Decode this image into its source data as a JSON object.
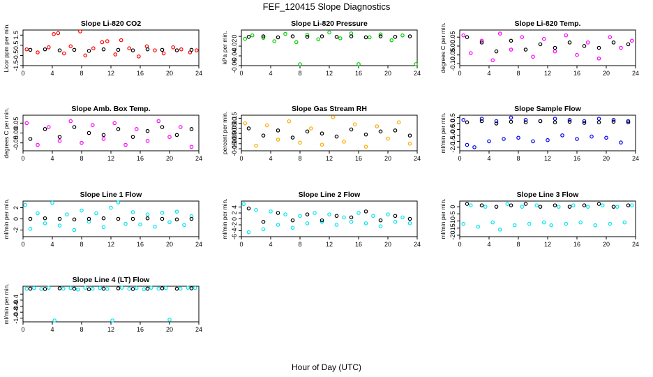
{
  "figure": {
    "title": "FEF_120415  Slope Diagnostics",
    "xlabel": "Hour of Day (UTC)"
  },
  "chart_data": [
    {
      "type": "scatter",
      "title": "Slope Li-820 CO2",
      "ylabel": "Licor ppm per min.",
      "color": "#ff0000",
      "xlim": [
        0,
        24
      ],
      "xticks": [
        0,
        4,
        8,
        12,
        16,
        20,
        24
      ],
      "ylim": [
        -1.5,
        2.0
      ],
      "yticks": [
        -1.5,
        -0.5,
        0.5,
        1.5
      ],
      "ytick_labels": [
        "-1.5",
        "-0.5",
        "0.5",
        "1.5"
      ],
      "series": [
        {
          "role": "main",
          "x": [
            0.5,
            2.0,
            3.5,
            4.2,
            4.8,
            5.6,
            6.5,
            7.8,
            8.5,
            9.6,
            10.8,
            11.5,
            12.6,
            13.4,
            14.5,
            15.8,
            16.9,
            18.0,
            19.2,
            20.5,
            21.6,
            22.8,
            23.7
          ],
          "y": [
            0.1,
            -0.2,
            0.3,
            1.6,
            1.7,
            -0.3,
            0.4,
            1.9,
            -0.5,
            0.2,
            0.8,
            0.9,
            -0.4,
            1.0,
            0.2,
            -0.6,
            0.4,
            0.0,
            -0.3,
            0.3,
            0.1,
            -0.2,
            0.0
          ]
        },
        {
          "role": "reference",
          "x": [
            1,
            3,
            5,
            7,
            9,
            11,
            13,
            15,
            17,
            19,
            21,
            23
          ],
          "y": [
            0.05,
            0.1,
            0.0,
            0.05,
            -0.05,
            0.1,
            0.05,
            0.0,
            0.1,
            0.05,
            0.0,
            0.05
          ]
        }
      ]
    },
    {
      "type": "scatter",
      "title": "Slope Li-820 Pressure",
      "ylabel": "kPa per min.",
      "color": "#00cc00",
      "xlim": [
        0,
        24
      ],
      "xticks": [
        0,
        4,
        8,
        12,
        16,
        20,
        24
      ],
      "ylim": [
        -0.06,
        0.013
      ],
      "yticks": [
        -0.06,
        -0.04,
        -0.02,
        0.0
      ],
      "ytick_labels": [
        "-0.06",
        "-0.04",
        "-0.02",
        "0"
      ],
      "series": [
        {
          "role": "main",
          "x": [
            0.5,
            1.5,
            3.0,
            4.5,
            6.0,
            7.5,
            8.0,
            9.0,
            10.5,
            12.0,
            13.5,
            15.0,
            16.0,
            17.5,
            19.0,
            20.5,
            22.0,
            23.9
          ],
          "y": [
            -0.005,
            0.002,
            -0.003,
            -0.01,
            0.005,
            -0.012,
            -0.06,
            0.003,
            -0.006,
            0.008,
            -0.004,
            0.006,
            -0.057,
            -0.002,
            0.004,
            -0.008,
            0.002,
            -0.062
          ]
        },
        {
          "role": "reference",
          "x": [
            1,
            3,
            5,
            7,
            9,
            11,
            13,
            15,
            17,
            19,
            21,
            23
          ],
          "y": [
            -0.001,
            0.0,
            -0.002,
            0.0,
            -0.001,
            0.0,
            -0.001,
            0.0,
            -0.002,
            0.0,
            -0.001,
            0.0
          ]
        }
      ]
    },
    {
      "type": "scatter",
      "title": "Slope Li-820 Temp.",
      "ylabel": "degrees C per min.",
      "color": "#ff00ff",
      "xlim": [
        0,
        24
      ],
      "xticks": [
        0,
        4,
        8,
        12,
        16,
        20,
        24
      ],
      "ylim": [
        -0.11,
        0.09
      ],
      "yticks": [
        -0.1,
        -0.05,
        0.0,
        0.05
      ],
      "ytick_labels": [
        "-0.10",
        "-0.05",
        "0.00",
        "0.05"
      ],
      "series": [
        {
          "role": "main",
          "x": [
            0.5,
            1.5,
            3.0,
            4.5,
            5.5,
            7.0,
            8.5,
            10.0,
            11.5,
            13.0,
            14.5,
            16.0,
            17.5,
            19.0,
            20.5,
            22.0,
            23.5
          ],
          "y": [
            0.06,
            -0.04,
            0.03,
            -0.08,
            0.07,
            -0.02,
            0.05,
            -0.06,
            0.04,
            -0.03,
            0.06,
            -0.05,
            0.02,
            -0.07,
            0.05,
            -0.01,
            0.03
          ]
        },
        {
          "role": "reference",
          "x": [
            1,
            3,
            5,
            7,
            9,
            11,
            13,
            15,
            17,
            19,
            21,
            23
          ],
          "y": [
            0.05,
            0.02,
            -0.03,
            0.03,
            -0.02,
            0.01,
            -0.01,
            0.02,
            0.0,
            -0.01,
            0.02,
            0.01
          ]
        }
      ]
    },
    {
      "type": "scatter",
      "title": "Slope Amb. Box Temp.",
      "ylabel": "degrees C per min.",
      "color": "#ff00ff",
      "xlim": [
        0,
        24
      ],
      "xticks": [
        0,
        4,
        8,
        12,
        16,
        20,
        24
      ],
      "ylim": [
        -0.09,
        0.09
      ],
      "yticks": [
        -0.05,
        0.0,
        0.05
      ],
      "ytick_labels": [
        "-0.05",
        "0.00",
        "0.05"
      ],
      "series": [
        {
          "role": "main",
          "x": [
            0.5,
            2.0,
            3.5,
            5.0,
            6.5,
            8.0,
            9.5,
            11.0,
            12.5,
            14.0,
            15.5,
            17.0,
            18.5,
            20.0,
            21.5,
            23.0
          ],
          "y": [
            0.05,
            -0.06,
            0.03,
            -0.04,
            0.06,
            -0.05,
            0.04,
            -0.03,
            0.05,
            -0.06,
            0.02,
            -0.04,
            0.06,
            -0.02,
            0.03,
            -0.07
          ]
        },
        {
          "role": "reference",
          "x": [
            1,
            3,
            5,
            7,
            9,
            11,
            13,
            15,
            17,
            19,
            21,
            23
          ],
          "y": [
            -0.03,
            0.02,
            -0.02,
            0.03,
            0.0,
            -0.01,
            0.02,
            -0.02,
            0.01,
            0.03,
            -0.01,
            0.02
          ]
        }
      ]
    },
    {
      "type": "scatter",
      "title": "Slope Gas Stream RH",
      "ylabel": "percent per min.",
      "color": "#ffaa00",
      "xlim": [
        0,
        24
      ],
      "xticks": [
        0,
        4,
        8,
        12,
        16,
        20,
        24
      ],
      "ylim": [
        -0.17,
        0.18
      ],
      "yticks": [
        -0.15,
        -0.1,
        -0.05,
        0.0,
        0.05,
        0.1,
        0.15
      ],
      "ytick_labels": [
        "-0.15",
        "-0.10",
        "-0.05",
        "0.00",
        "0.05",
        "0.10",
        "0.15"
      ],
      "series": [
        {
          "role": "main",
          "x": [
            0.5,
            2.0,
            3.5,
            5.0,
            6.5,
            8.0,
            9.5,
            11.0,
            12.5,
            14.0,
            15.5,
            17.0,
            18.5,
            20.0,
            21.5,
            23.0
          ],
          "y": [
            0.1,
            -0.12,
            0.08,
            -0.06,
            0.12,
            -0.09,
            0.05,
            -0.11,
            0.16,
            -0.08,
            0.09,
            -0.13,
            0.07,
            -0.05,
            0.11,
            -0.1
          ]
        },
        {
          "role": "reference",
          "x": [
            1,
            3,
            5,
            7,
            9,
            11,
            13,
            15,
            17,
            19,
            21,
            23
          ],
          "y": [
            0.05,
            -0.02,
            0.03,
            -0.04,
            0.02,
            0.0,
            -0.03,
            0.04,
            -0.01,
            0.02,
            0.03,
            -0.02
          ]
        }
      ]
    },
    {
      "type": "scatter",
      "title": "Slope Sample Flow",
      "ylabel": "ml/min per min.",
      "color": "#0000ee",
      "xlim": [
        0,
        24
      ],
      "xticks": [
        0,
        4,
        8,
        12,
        16,
        20,
        24
      ],
      "ylim": [
        -2.3,
        0.7
      ],
      "yticks": [
        -2.0,
        -1.5,
        -1.0,
        -0.5,
        0.0,
        0.5
      ],
      "ytick_labels": [
        "-2.0",
        "-1.5",
        "-1.0",
        "-0.5",
        "0.0",
        "0.5"
      ],
      "series": [
        {
          "role": "main",
          "x": [
            0.5,
            1.0,
            2.0,
            3.0,
            4.0,
            5.0,
            6.0,
            7.0,
            8.0,
            9.0,
            10.0,
            11.0,
            12.0,
            13.0,
            14.0,
            15.0,
            16.0,
            17.0,
            18.0,
            19.0,
            20.0,
            21.0,
            22.0,
            23.0
          ],
          "y": [
            0.3,
            -1.8,
            -2.0,
            0.4,
            -1.5,
            0.2,
            -1.3,
            0.5,
            -1.2,
            0.3,
            -1.5,
            0.2,
            -1.4,
            0.4,
            -1.0,
            0.3,
            -1.3,
            0.2,
            -1.1,
            0.4,
            -1.2,
            0.3,
            -1.6,
            0.2
          ]
        },
        {
          "role": "reference",
          "x": [
            1,
            3,
            5,
            7,
            9,
            11,
            13,
            15,
            17,
            19,
            21,
            23
          ],
          "y": [
            0.1,
            0.2,
            0.0,
            0.15,
            0.1,
            0.2,
            0.1,
            0.15,
            0.05,
            0.1,
            0.15,
            0.1
          ]
        }
      ]
    },
    {
      "type": "scatter",
      "title": "Slope Line 1 Flow",
      "ylabel": "ml/min per min.",
      "color": "#00e5ee",
      "xlim": [
        0,
        24
      ],
      "xticks": [
        0,
        4,
        8,
        12,
        16,
        20,
        24
      ],
      "ylim": [
        -3.2,
        3.2
      ],
      "yticks": [
        -2,
        0,
        2
      ],
      "ytick_labels": [
        "-2",
        "0",
        "2"
      ],
      "series": [
        {
          "role": "main",
          "x": [
            0.3,
            1.0,
            2.0,
            3.0,
            4.0,
            5.0,
            6.0,
            7.0,
            8.0,
            9.0,
            10.0,
            11.0,
            12.0,
            13.0,
            14.0,
            15.0,
            16.0,
            17.0,
            18.0,
            19.0,
            20.0,
            21.0,
            22.0,
            23.0
          ],
          "y": [
            2.5,
            -1.8,
            1.0,
            -0.8,
            2.9,
            -1.2,
            0.8,
            -2.0,
            1.5,
            -0.5,
            1.0,
            -1.5,
            2.0,
            3.0,
            -0.9,
            1.2,
            -1.0,
            0.8,
            -1.4,
            1.1,
            -0.6,
            1.3,
            -1.1,
            0.5
          ]
        },
        {
          "role": "reference",
          "x": [
            1,
            3,
            5,
            7,
            9,
            11,
            13,
            15,
            17,
            19,
            21,
            23
          ],
          "y": [
            0.0,
            0.1,
            0.0,
            -0.1,
            0.0,
            0.1,
            0.0,
            0.0,
            0.1,
            0.0,
            -0.1,
            0.0
          ]
        }
      ]
    },
    {
      "type": "scatter",
      "title": "Slope Line 2 Flow",
      "ylabel": "ml/min per min.",
      "color": "#00e5ee",
      "xlim": [
        0,
        24
      ],
      "xticks": [
        0,
        4,
        8,
        12,
        16,
        20,
        24
      ],
      "ylim": [
        -6.0,
        6.0
      ],
      "yticks": [
        -6,
        -4,
        -2,
        0,
        2,
        4
      ],
      "ytick_labels": [
        "-6",
        "-4",
        "-2",
        "0",
        "2",
        "4"
      ],
      "series": [
        {
          "role": "main",
          "x": [
            0.3,
            1.0,
            2.0,
            3.0,
            4.0,
            5.0,
            6.0,
            7.0,
            8.0,
            9.0,
            10.0,
            11.0,
            12.0,
            13.0,
            14.0,
            15.0,
            16.0,
            17.0,
            18.0,
            19.0,
            20.0,
            21.0,
            22.0,
            23.0
          ],
          "y": [
            5.0,
            -4.5,
            3.0,
            -3.5,
            2.5,
            -2.0,
            1.5,
            -3.0,
            1.0,
            -1.5,
            2.0,
            -1.0,
            1.5,
            -2.0,
            0.5,
            -1.0,
            2.0,
            -1.5,
            1.0,
            -2.5,
            1.5,
            -1.0,
            0.5,
            -1.5
          ]
        },
        {
          "role": "reference",
          "x": [
            1,
            3,
            5,
            7,
            9,
            11,
            13,
            15,
            17,
            19,
            21,
            23
          ],
          "y": [
            3.5,
            -1.0,
            2.0,
            -0.5,
            1.5,
            -0.5,
            1.0,
            0.5,
            2.5,
            -0.5,
            1.0,
            0.0
          ]
        }
      ]
    },
    {
      "type": "scatter",
      "title": "Slope Line 3 Flow",
      "ylabel": "ml/min per min.",
      "color": "#00e5ee",
      "xlim": [
        0,
        24
      ],
      "xticks": [
        0,
        4,
        8,
        12,
        16,
        20,
        24
      ],
      "ylim": [
        -21,
        4
      ],
      "yticks": [
        -20,
        -15,
        -10,
        -5,
        0
      ],
      "ytick_labels": [
        "-20",
        "-15",
        "-10",
        "-5",
        "0"
      ],
      "series": [
        {
          "role": "main",
          "x": [
            0.5,
            1.5,
            2.5,
            3.5,
            4.5,
            5.5,
            6.5,
            7.5,
            8.5,
            9.5,
            10.5,
            11.5,
            12.5,
            13.5,
            14.5,
            15.5,
            16.5,
            17.5,
            18.5,
            19.5,
            20.5,
            21.5,
            22.5,
            23.5
          ],
          "y": [
            -12,
            1,
            -14,
            0,
            -11,
            -16,
            2,
            -13,
            0,
            -12,
            1,
            -11,
            -13,
            0,
            -12,
            1,
            -11,
            0,
            -13,
            1,
            -12,
            0,
            -11,
            1
          ]
        },
        {
          "role": "reference",
          "x": [
            1,
            3,
            5,
            7,
            9,
            11,
            13,
            15,
            17,
            19,
            21,
            23
          ],
          "y": [
            2,
            1,
            0,
            1,
            2,
            0,
            1,
            0,
            1,
            2,
            0,
            1
          ]
        }
      ]
    },
    {
      "type": "scatter",
      "title": "Slope Line 4 (LT) Flow",
      "ylabel": "ml/min per min.",
      "color": "#00e5ee",
      "xlim": [
        0,
        24
      ],
      "xticks": [
        0,
        4,
        8,
        12,
        16,
        20,
        24
      ],
      "ylim": [
        -1.12,
        0.06
      ],
      "yticks": [
        -1.0,
        -0.8,
        -0.6,
        -0.4,
        -0.2
      ],
      "ytick_labels": [
        "-1.0",
        "-0.8",
        "-0.6",
        "-0.4",
        ""
      ],
      "series": [
        {
          "role": "main",
          "x": [
            0.5,
            1.5,
            2.5,
            3.5,
            4.3,
            5.5,
            6.5,
            7.5,
            8.5,
            9.5,
            10.5,
            11.5,
            12.2,
            13.5,
            14.5,
            15.5,
            16.5,
            17.5,
            18.5,
            19.5,
            20.0,
            21.5,
            22.5,
            23.5
          ],
          "y": [
            -0.02,
            0.0,
            -0.03,
            0.01,
            -1.1,
            -0.02,
            0.0,
            -0.05,
            0.01,
            -0.02,
            0.0,
            -0.03,
            -1.1,
            0.01,
            -0.02,
            0.0,
            -0.04,
            0.01,
            -0.02,
            0.0,
            -1.05,
            -0.02,
            0.01,
            0.0
          ]
        },
        {
          "role": "reference",
          "x": [
            1,
            3,
            5,
            7,
            9,
            11,
            13,
            15,
            17,
            19,
            21,
            23
          ],
          "y": [
            -0.02,
            -0.03,
            -0.01,
            -0.02,
            -0.04,
            -0.02,
            -0.01,
            -0.03,
            -0.02,
            -0.01,
            -0.02,
            -0.01
          ]
        }
      ]
    }
  ]
}
